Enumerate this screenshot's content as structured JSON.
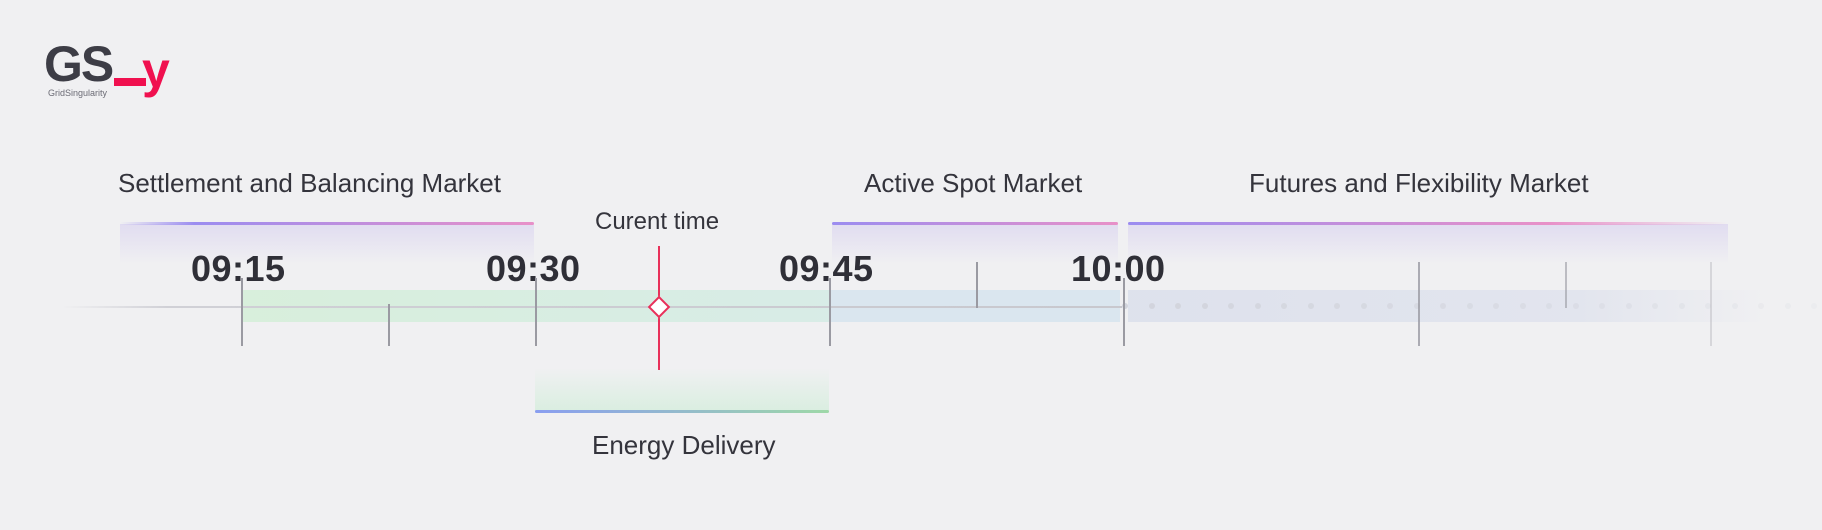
{
  "logo": {
    "mark": "GS",
    "accent": "y",
    "wordmark": "GridSingularity",
    "brand_color": "#f0104f"
  },
  "markets": {
    "settlement": "Settlement and Balancing Market",
    "spot": "Active Spot Market",
    "futures": "Futures and Flexibility Market"
  },
  "current_time_label": "Curent time",
  "energy_delivery_label": "Energy Delivery",
  "timeline": {
    "times": [
      "09:15",
      "09:30",
      "09:45",
      "10:00"
    ]
  },
  "colors": {
    "background": "#f0f0f2",
    "bracket_start": "#9b8cf0",
    "bracket_end": "#e890c8",
    "delivery_start": "#8a9ef0",
    "delivery_end": "#9ed8a8",
    "current_time_marker": "#e8305a"
  }
}
